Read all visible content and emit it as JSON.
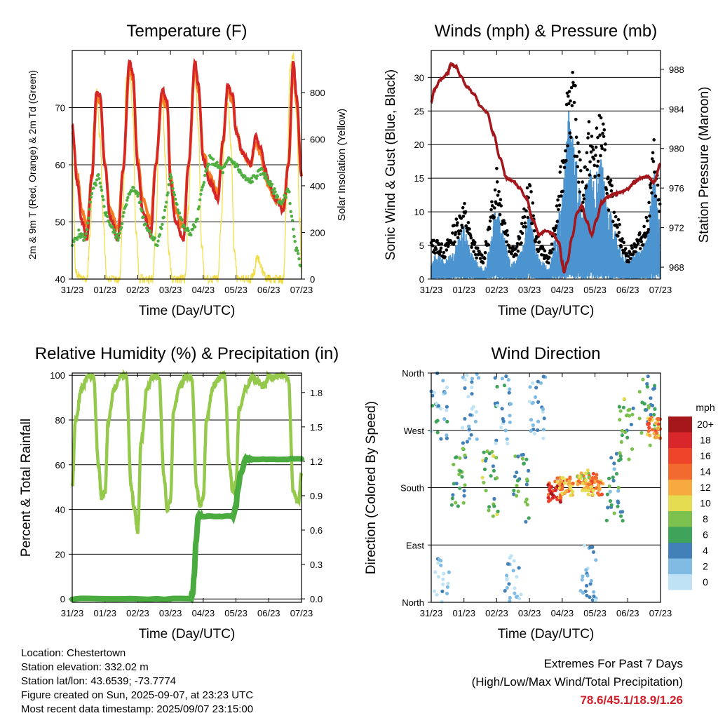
{
  "colors": {
    "temp2m": "#d62728",
    "temp9m": "#f57c22",
    "dewpoint": "#4fb041",
    "solar": "#f2de4a",
    "gust": "#000000",
    "wind": "#4c94cf",
    "pressure": "#a3171c",
    "rh": "#95c94b",
    "precip": "#4aab3f"
  },
  "speed_scale": {
    "unit": "mph",
    "levels": [
      "20+",
      "18",
      "16",
      "14",
      "12",
      "10",
      "8",
      "6",
      "4",
      "2",
      "0"
    ],
    "colors": [
      "#a6171c",
      "#d8262a",
      "#ee452a",
      "#f36a2e",
      "#f7aa3f",
      "#e6dc52",
      "#7cc04d",
      "#3fa45a",
      "#4280b8",
      "#7fbbe3",
      "#bfe3f5"
    ]
  },
  "chart_data": [
    {
      "id": "temperature",
      "type": "line",
      "title": "Temperature (F)",
      "xlabel": "Time (Day/UTC)",
      "ylabel": "2m & 9m T (Red, Orange) & 2m Td (Green)",
      "y2label": "Solar Insolation (Yellow)",
      "xticks": [
        "31/23",
        "01/23",
        "02/23",
        "03/23",
        "04/23",
        "05/23",
        "06/23",
        "07/23"
      ],
      "ylim": [
        40,
        80
      ],
      "yticks": [
        40,
        50,
        60,
        70
      ],
      "y2lim": [
        0,
        980
      ],
      "y2ticks": [
        0,
        200,
        400,
        600,
        800
      ],
      "series": [
        {
          "name": "2m T",
          "axis": "left",
          "x": [
            0,
            0.15,
            0.3,
            0.45,
            0.6,
            0.75,
            0.85,
            1.0,
            1.15,
            1.4,
            1.55,
            1.75,
            1.85,
            2.0,
            2.15,
            2.4,
            2.55,
            2.75,
            2.9,
            3.0,
            3.15,
            3.4,
            3.55,
            3.75,
            3.85,
            4.0,
            4.2,
            4.45,
            4.6,
            4.75,
            4.9,
            5.0,
            5.2,
            5.45,
            5.6,
            5.75,
            5.9,
            6.0,
            6.2,
            6.45,
            6.6,
            6.75,
            6.85,
            7.0
          ],
          "y": [
            67,
            57,
            50,
            47,
            58,
            73,
            72,
            60,
            51,
            47,
            59,
            78,
            76,
            60,
            52,
            48,
            60,
            73,
            71,
            57,
            50,
            47,
            60,
            78,
            74,
            61,
            57,
            54,
            64,
            74,
            72,
            66,
            62,
            60,
            65,
            63,
            59,
            57,
            54,
            52,
            60,
            78,
            72,
            58
          ]
        },
        {
          "name": "9m T",
          "axis": "left",
          "x": [
            0,
            0.15,
            0.3,
            0.45,
            0.6,
            0.75,
            0.85,
            1.0,
            1.15,
            1.4,
            1.55,
            1.75,
            1.85,
            2.0,
            2.15,
            2.4,
            2.55,
            2.75,
            2.9,
            3.0,
            3.15,
            3.4,
            3.55,
            3.75,
            3.85,
            4.0,
            4.2,
            4.45,
            4.6,
            4.75,
            4.9,
            5.0,
            5.2,
            5.45,
            5.6,
            5.75,
            5.9,
            6.0,
            6.2,
            6.45,
            6.6,
            6.75,
            6.85,
            7.0
          ],
          "y": [
            66,
            58,
            52,
            49,
            58,
            72,
            71,
            60,
            52,
            49,
            59,
            77,
            75,
            61,
            54,
            50,
            60,
            72,
            70,
            58,
            52,
            49,
            60,
            77,
            73,
            62,
            58,
            55,
            64,
            73,
            71,
            66,
            62,
            60,
            64,
            62,
            58,
            56,
            54,
            53,
            60,
            77,
            71,
            58
          ]
        },
        {
          "name": "2m Td",
          "axis": "left",
          "x": [
            0,
            0.2,
            0.4,
            0.6,
            0.8,
            1.0,
            1.2,
            1.4,
            1.6,
            1.8,
            2.0,
            2.2,
            2.4,
            2.6,
            2.8,
            3.0,
            3.2,
            3.4,
            3.6,
            3.8,
            4.0,
            4.2,
            4.4,
            4.6,
            4.8,
            5.0,
            5.2,
            5.4,
            5.6,
            5.8,
            6.0,
            6.2,
            6.4,
            6.6,
            6.8,
            7.0
          ],
          "y": [
            46,
            48,
            47,
            55,
            58,
            52,
            49,
            47,
            52,
            56,
            55,
            50,
            48,
            46,
            51,
            58,
            53,
            49,
            48,
            50,
            57,
            61,
            60,
            59,
            61,
            60,
            58,
            57,
            58,
            59,
            57,
            55,
            53,
            56,
            46,
            42
          ]
        },
        {
          "name": "Solar",
          "axis": "right",
          "x": [
            0,
            0.05,
            0.1,
            0.3,
            0.45,
            0.55,
            0.65,
            0.75,
            0.85,
            0.95,
            1.05,
            1.3,
            1.45,
            1.55,
            1.65,
            1.75,
            1.85,
            1.95,
            2.05,
            2.3,
            2.45,
            2.55,
            2.65,
            2.75,
            2.85,
            2.95,
            3.05,
            3.3,
            3.45,
            3.55,
            3.65,
            3.75,
            3.85,
            3.95,
            4.05,
            4.3,
            4.45,
            4.55,
            4.65,
            4.75,
            4.85,
            4.95,
            5.05,
            5.3,
            5.45,
            5.55,
            5.65,
            5.75,
            5.85,
            5.95,
            6.05,
            6.3,
            6.45,
            6.55,
            6.65,
            6.75,
            6.85,
            6.95,
            7.0
          ],
          "y": [
            560,
            300,
            30,
            0,
            0,
            200,
            650,
            800,
            600,
            250,
            0,
            0,
            0,
            320,
            850,
            930,
            700,
            200,
            0,
            0,
            0,
            200,
            600,
            780,
            500,
            120,
            0,
            0,
            0,
            300,
            800,
            880,
            650,
            150,
            0,
            0,
            0,
            250,
            650,
            760,
            560,
            120,
            0,
            0,
            0,
            30,
            100,
            60,
            20,
            0,
            0,
            0,
            0,
            350,
            900,
            960,
            700,
            250,
            30
          ]
        }
      ]
    },
    {
      "id": "winds",
      "type": "line",
      "title": "Winds (mph) & Pressure (mb)",
      "xlabel": "Time (Day/UTC)",
      "ylabel": "Sonic Wind & Gust (Blue, Black)",
      "y2label": "Station Pressure (Maroon)",
      "xticks": [
        "31/23",
        "01/23",
        "02/23",
        "03/23",
        "04/23",
        "05/23",
        "06/23",
        "07/23"
      ],
      "ylim": [
        0,
        34
      ],
      "yticks": [
        0,
        5,
        10,
        15,
        20,
        25,
        30
      ],
      "y2lim": [
        966.8,
        989.9
      ],
      "y2ticks": [
        968,
        972,
        976,
        980,
        984,
        988
      ],
      "series": [
        {
          "name": "Gust",
          "axis": "left",
          "x": [
            0,
            0.2,
            0.4,
            0.6,
            0.8,
            1.0,
            1.2,
            1.4,
            1.6,
            1.8,
            2.0,
            2.2,
            2.4,
            2.6,
            2.8,
            3.0,
            3.2,
            3.4,
            3.6,
            3.8,
            4.0,
            4.2,
            4.4,
            4.6,
            4.8,
            5.0,
            5.2,
            5.4,
            5.6,
            5.8,
            6.0,
            6.2,
            6.4,
            6.6,
            6.8,
            7.0
          ],
          "y": [
            5,
            5,
            4,
            6,
            8,
            10,
            6,
            4,
            3,
            8,
            15,
            9,
            5,
            4,
            8,
            13,
            6,
            4,
            3,
            8,
            16,
            28,
            24,
            12,
            20,
            18,
            22,
            14,
            10,
            6,
            3,
            5,
            6,
            8,
            18,
            10
          ]
        },
        {
          "name": "Wind",
          "axis": "left",
          "x": [
            0,
            0.2,
            0.4,
            0.6,
            0.8,
            1.0,
            1.2,
            1.4,
            1.6,
            1.8,
            2.0,
            2.2,
            2.4,
            2.6,
            2.8,
            3.0,
            3.2,
            3.4,
            3.6,
            3.8,
            4.0,
            4.2,
            4.4,
            4.6,
            4.8,
            5.0,
            5.2,
            5.4,
            5.6,
            5.8,
            6.0,
            6.2,
            6.4,
            6.6,
            6.8,
            7.0
          ],
          "y": [
            2,
            3,
            2,
            3,
            4,
            6,
            3,
            2,
            1,
            4,
            9,
            5,
            2,
            2,
            4,
            8,
            3,
            2,
            1,
            5,
            9,
            18,
            14,
            7,
            12,
            11,
            13,
            8,
            6,
            3,
            2,
            3,
            3,
            5,
            12,
            5
          ]
        },
        {
          "name": "Pressure",
          "axis": "right",
          "x": [
            0,
            0.1,
            0.3,
            0.5,
            0.6,
            0.75,
            0.9,
            1.1,
            1.3,
            1.5,
            1.7,
            1.9,
            2.1,
            2.3,
            2.5,
            2.7,
            2.9,
            3.1,
            3.3,
            3.5,
            3.7,
            3.9,
            4.0,
            4.05,
            4.15,
            4.3,
            4.45,
            4.6,
            4.75,
            4.9,
            5.05,
            5.2,
            5.4,
            5.6,
            5.8,
            6.0,
            6.2,
            6.4,
            6.6,
            6.8,
            7.0
          ],
          "y": [
            984.7,
            986,
            987,
            987.6,
            988.5,
            988.3,
            987.3,
            986.2,
            985.5,
            984.3,
            983.7,
            981.5,
            979,
            977,
            976.7,
            976,
            975,
            972.8,
            971.3,
            971.7,
            971.4,
            970.5,
            968.5,
            967.5,
            968.5,
            971,
            973.5,
            974.2,
            972.6,
            971.3,
            972.8,
            974.5,
            975.1,
            975.4,
            975.6,
            975.9,
            976.6,
            977,
            977.2,
            976.6,
            978.4
          ]
        }
      ]
    },
    {
      "id": "humidity",
      "type": "line",
      "title": "Relative Humidity (%) & Precipitation (in)",
      "xlabel": "Time (Day/UTC)",
      "ylabel": "Percent & Total Rainfall",
      "xticks": [
        "31/23",
        "01/23",
        "02/23",
        "03/23",
        "04/23",
        "05/23",
        "06/23",
        "07/23"
      ],
      "ylim": [
        -1.5,
        101
      ],
      "yticks": [
        0,
        20,
        40,
        60,
        80,
        100
      ],
      "y2lim": [
        -0.03,
        1.97
      ],
      "y2ticks": [
        "0.0",
        "0.3",
        "0.6",
        "0.9",
        "1.2",
        "1.5",
        "1.8"
      ],
      "series": [
        {
          "name": "RH",
          "axis": "left",
          "x": [
            0,
            0.1,
            0.3,
            0.5,
            0.65,
            0.8,
            0.9,
            1.0,
            1.1,
            1.3,
            1.5,
            1.65,
            1.8,
            1.9,
            2.0,
            2.1,
            2.3,
            2.5,
            2.65,
            2.8,
            2.9,
            3.0,
            3.1,
            3.3,
            3.5,
            3.65,
            3.8,
            3.9,
            4.0,
            4.1,
            4.3,
            4.5,
            4.65,
            4.8,
            4.9,
            5.0,
            5.1,
            5.3,
            5.5,
            5.65,
            5.8,
            5.9,
            6.0,
            6.1,
            6.3,
            6.45,
            6.6,
            6.75,
            6.9,
            7.0
          ],
          "y": [
            50,
            80,
            95,
            100,
            99,
            60,
            45,
            48,
            80,
            95,
            100,
            99,
            50,
            40,
            30,
            70,
            95,
            100,
            99,
            55,
            40,
            45,
            85,
            95,
            100,
            99,
            50,
            42,
            45,
            80,
            95,
            99,
            100,
            60,
            48,
            52,
            85,
            95,
            99,
            97,
            95,
            96,
            100,
            99,
            100,
            100,
            98,
            48,
            43,
            55
          ]
        },
        {
          "name": "Precip",
          "axis": "right",
          "x": [
            0,
            3.6,
            3.68,
            3.72,
            3.78,
            3.85,
            3.95,
            4.9,
            5.0,
            5.05,
            5.15,
            5.3,
            5.5,
            7.0
          ],
          "y": [
            0,
            0,
            0.05,
            0.2,
            0.5,
            0.72,
            0.72,
            0.72,
            0.8,
            0.95,
            1.1,
            1.22,
            1.22,
            1.22
          ]
        }
      ]
    },
    {
      "id": "direction",
      "type": "scatter",
      "title": "Wind Direction",
      "xlabel": "Time (Day/UTC)",
      "ylabel": "Direction (Colored By Speed)",
      "xticks": [
        "31/23",
        "01/23",
        "02/23",
        "03/23",
        "04/23",
        "05/23",
        "06/23",
        "07/23"
      ],
      "ylim": [
        0,
        360
      ],
      "yticks": [
        "North",
        "East",
        "South",
        "West",
        "North"
      ],
      "clusters": [
        {
          "x": 0.25,
          "y": 310,
          "speed": 3
        },
        {
          "x": 0.8,
          "y": 200,
          "speed": 6
        },
        {
          "x": 1.2,
          "y": 305,
          "speed": 2
        },
        {
          "x": 1.8,
          "y": 190,
          "speed": 7
        },
        {
          "x": 2.2,
          "y": 300,
          "speed": 3
        },
        {
          "x": 2.75,
          "y": 180,
          "speed": 6
        },
        {
          "x": 3.25,
          "y": 310,
          "speed": 2
        },
        {
          "x": 3.8,
          "y": 175,
          "speed": 17
        },
        {
          "x": 4.1,
          "y": 180,
          "speed": 12
        },
        {
          "x": 4.7,
          "y": 190,
          "speed": 11
        },
        {
          "x": 5.0,
          "y": 185,
          "speed": 13
        },
        {
          "x": 5.6,
          "y": 180,
          "speed": 5
        },
        {
          "x": 5.95,
          "y": 270,
          "speed": 7
        },
        {
          "x": 6.6,
          "y": 300,
          "speed": 6
        },
        {
          "x": 6.85,
          "y": 275,
          "speed": 13
        },
        {
          "x": 0.3,
          "y": 20,
          "speed": 1
        },
        {
          "x": 2.5,
          "y": 30,
          "speed": 1
        },
        {
          "x": 4.8,
          "y": 40,
          "speed": 2
        }
      ]
    }
  ],
  "info": {
    "location": "Location: Chestertown",
    "elevation": "Station elevation: 332.02 m",
    "latlon": "Station lat/lon: 43.6539; -73.7774",
    "created": "Figure created on Sun, 2025-09-07, at 23:23 UTC",
    "recent": "Most recent data timestamp: 2025/09/07 23:15:00"
  },
  "extremes": {
    "title": "Extremes For Past 7 Days",
    "subtitle": "(High/Low/Max Wind/Total Precipitation)",
    "values": "78.6/45.1/18.9/1.26"
  }
}
